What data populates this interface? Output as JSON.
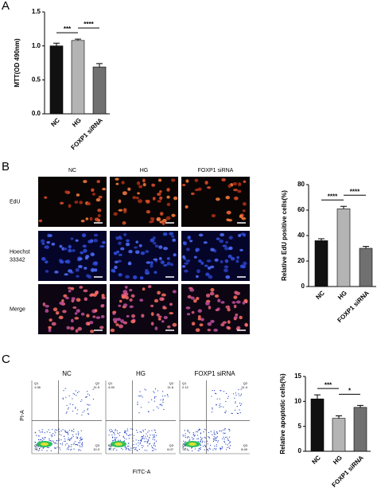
{
  "panels": {
    "labels": [
      "A",
      "B",
      "C"
    ]
  },
  "microscopy": {
    "columns": [
      "NC",
      "HG",
      "FOXP1 siRNA"
    ],
    "rows": [
      [
        "EdU"
      ],
      [
        "Hoechst",
        "33342"
      ],
      [
        "Merge"
      ]
    ]
  },
  "flow": {
    "columns": [
      "NC",
      "HG",
      "FOXP1 siRNA"
    ],
    "x_label": "FITC-A",
    "y_label": "PI-A",
    "plots": [
      {
        "quadrants": [
          {
            "name": "Q1",
            "value": "1.08"
          },
          {
            "name": "Q2",
            "value": "11.9"
          },
          {
            "name": "Q3",
            "value": "10.3"
          },
          {
            "name": "Q4",
            "value": "76.7"
          }
        ]
      },
      {
        "quadrants": [
          {
            "name": "Q1",
            "value": "4.93"
          },
          {
            "name": "Q2",
            "value": "11.6"
          },
          {
            "name": "Q3",
            "value": "6.07"
          },
          {
            "name": "Q4",
            "value": "77.1"
          }
        ]
      },
      {
        "quadrants": [
          {
            "name": "Q1",
            "value": "2.12"
          },
          {
            "name": "Q2",
            "value": "11.4"
          },
          {
            "name": "Q3",
            "value": "8.40"
          },
          {
            "name": "Q4",
            "value": "78.1"
          }
        ]
      }
    ]
  },
  "chart_data": [
    {
      "type": "bar",
      "y_label": "MTT(OD 490nm)",
      "categories": [
        "NC",
        "HG",
        "FOXP1 siRNA"
      ],
      "values": [
        1.0,
        1.08,
        0.69
      ],
      "errors": [
        0.04,
        0.02,
        0.05
      ],
      "colors": [
        "#111111",
        "#b4b4b4",
        "#707070"
      ],
      "ylim": [
        0,
        1.5
      ],
      "yticks": [
        {
          "value": 0,
          "label": "0.0"
        },
        0.5,
        {
          "value": 1,
          "label": "1.0"
        },
        1.5
      ],
      "annotations": [
        {
          "label": "***",
          "between": [
            "NC",
            "HG"
          ]
        },
        {
          "label": "****",
          "between": [
            "HG",
            "FOXP1 siRNA"
          ]
        }
      ]
    },
    {
      "type": "bar",
      "y_label": "Relative EdU positive cells(%)",
      "categories": [
        "NC",
        "HG",
        "FOXP1 siRNA"
      ],
      "values": [
        36,
        61,
        30
      ],
      "errors": [
        1.5,
        2,
        1.5
      ],
      "colors": [
        "#111111",
        "#b4b4b4",
        "#707070"
      ],
      "ylim": [
        0,
        80
      ],
      "yticks": [
        0,
        20,
        40,
        60,
        80
      ],
      "annotations": [
        {
          "label": "****",
          "between": [
            "NC",
            "HG"
          ]
        },
        {
          "label": "****",
          "between": [
            "HG",
            "FOXP1 siRNA"
          ]
        }
      ]
    },
    {
      "type": "bar",
      "y_label": "Relative apoptotic cells(%)",
      "categories": [
        "NC",
        "HG",
        "FOXP1 siRNA"
      ],
      "values": [
        10.5,
        6.6,
        8.8
      ],
      "errors": [
        0.8,
        0.5,
        0.4
      ],
      "colors": [
        "#111111",
        "#b4b4b4",
        "#707070"
      ],
      "ylim": [
        0,
        15
      ],
      "yticks": [
        0,
        5,
        10,
        15
      ],
      "annotations": [
        {
          "label": "***",
          "between": [
            "NC",
            "HG"
          ]
        },
        {
          "label": "*",
          "between": [
            "HG",
            "FOXP1 siRNA"
          ]
        }
      ]
    }
  ]
}
